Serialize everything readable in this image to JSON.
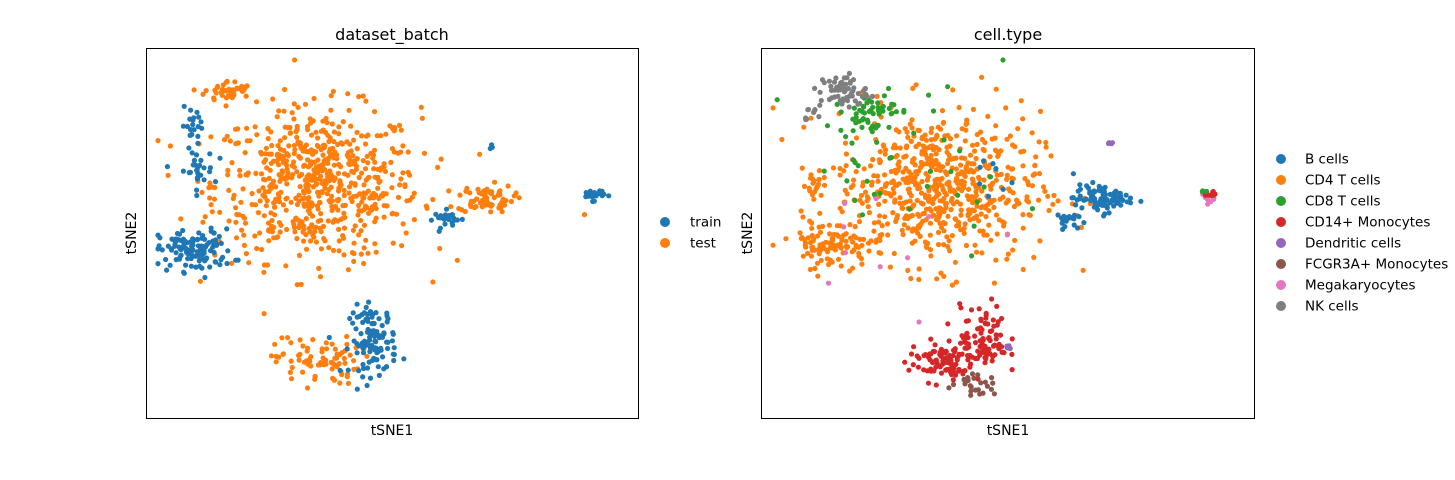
{
  "chart_data": [
    {
      "type": "scatter",
      "title": "dataset_batch",
      "xlabel": "tSNE1",
      "ylabel": "tSNE2",
      "xticks": [],
      "yticks": [],
      "xlim": [
        0,
        100
      ],
      "ylim": [
        0,
        100
      ],
      "grid": false,
      "legend_position": "right",
      "series": [
        {
          "name": "train",
          "color": "#1f77b4"
        },
        {
          "name": "test",
          "color": "#ff7f0e"
        }
      ],
      "clusters": [
        {
          "series": "test",
          "x": 34,
          "y": 64,
          "sx": 11,
          "sy": 11,
          "n": 650
        },
        {
          "series": "test",
          "x": 15,
          "y": 91,
          "sx": 2.5,
          "sy": 1.5,
          "n": 45
        },
        {
          "series": "test",
          "x": 70,
          "y": 60,
          "sx": 3,
          "sy": 2,
          "n": 70
        },
        {
          "series": "test",
          "x": 34,
          "y": 13,
          "sx": 4.5,
          "sy": 3.5,
          "n": 80
        },
        {
          "series": "test",
          "x": 91,
          "y": 55,
          "sx": 0.3,
          "sy": 0.3,
          "n": 1
        },
        {
          "series": "train",
          "x": 8,
          "y": 45,
          "sx": 4,
          "sy": 3,
          "n": 120
        },
        {
          "series": "train",
          "x": 8,
          "y": 68,
          "sx": 2,
          "sy": 3,
          "n": 30
        },
        {
          "series": "train",
          "x": 8,
          "y": 81,
          "sx": 1.5,
          "sy": 2.5,
          "n": 20
        },
        {
          "series": "train",
          "x": 46,
          "y": 19,
          "sx": 2.5,
          "sy": 5,
          "n": 110
        },
        {
          "series": "train",
          "x": 62,
          "y": 54,
          "sx": 1.5,
          "sy": 1.2,
          "n": 25
        },
        {
          "series": "train",
          "x": 93,
          "y": 61,
          "sx": 1.2,
          "sy": 0.8,
          "n": 25
        },
        {
          "series": "train",
          "x": 71,
          "y": 75,
          "sx": 0.4,
          "sy": 0.4,
          "n": 3
        }
      ]
    },
    {
      "type": "scatter",
      "title": "cell.type",
      "xlabel": "tSNE1",
      "ylabel": "tSNE2",
      "xticks": [],
      "yticks": [],
      "xlim": [
        0,
        100
      ],
      "ylim": [
        0,
        100
      ],
      "grid": false,
      "legend_position": "right",
      "series": [
        {
          "name": "B cells",
          "color": "#1f77b4"
        },
        {
          "name": "CD4 T cells",
          "color": "#ff7f0e"
        },
        {
          "name": "CD8 T cells",
          "color": "#2ca02c"
        },
        {
          "name": "CD14+ Monocytes",
          "color": "#d62728"
        },
        {
          "name": "Dendritic cells",
          "color": "#9467bd"
        },
        {
          "name": "FCGR3A+ Monocytes",
          "color": "#8c564b"
        },
        {
          "name": "Megakaryocytes",
          "color": "#e377c2"
        },
        {
          "name": "NK cells",
          "color": "#7f7f7f"
        }
      ],
      "clusters": [
        {
          "series": "CD4 T cells",
          "x": 35,
          "y": 63,
          "sx": 11,
          "sy": 11,
          "n": 650
        },
        {
          "series": "CD4 T cells",
          "x": 12,
          "y": 47,
          "sx": 4,
          "sy": 3.5,
          "n": 90
        },
        {
          "series": "CD4 T cells",
          "x": 9,
          "y": 65,
          "sx": 1.5,
          "sy": 2,
          "n": 15
        },
        {
          "series": "CD8 T cells",
          "x": 20,
          "y": 85,
          "sx": 3,
          "sy": 3,
          "n": 50
        },
        {
          "series": "CD8 T cells",
          "x": 30,
          "y": 70,
          "sx": 12,
          "sy": 12,
          "n": 40
        },
        {
          "series": "NK cells",
          "x": 15,
          "y": 91,
          "sx": 2.5,
          "sy": 2.5,
          "n": 60
        },
        {
          "series": "NK cells",
          "x": 8,
          "y": 84,
          "sx": 1,
          "sy": 1,
          "n": 8
        },
        {
          "series": "B cells",
          "x": 70,
          "y": 60,
          "sx": 3,
          "sy": 2,
          "n": 90
        },
        {
          "series": "B cells",
          "x": 62,
          "y": 54,
          "sx": 1.3,
          "sy": 1,
          "n": 20
        },
        {
          "series": "B cells",
          "x": 45,
          "y": 66,
          "sx": 3,
          "sy": 4,
          "n": 8
        },
        {
          "series": "CD14+ Monocytes",
          "x": 36,
          "y": 13,
          "sx": 3.5,
          "sy": 3,
          "n": 90
        },
        {
          "series": "CD14+ Monocytes",
          "x": 45,
          "y": 19,
          "sx": 2.5,
          "sy": 5,
          "n": 90
        },
        {
          "series": "FCGR3A+ Monocytes",
          "x": 43,
          "y": 6,
          "sx": 2.5,
          "sy": 1.5,
          "n": 25
        },
        {
          "series": "Dendritic cells",
          "x": 72,
          "y": 76,
          "sx": 0.4,
          "sy": 0.3,
          "n": 4
        },
        {
          "series": "Dendritic cells",
          "x": 51,
          "y": 17,
          "sx": 0.6,
          "sy": 0.4,
          "n": 4
        },
        {
          "series": "Megakaryocytes",
          "x": 93,
          "y": 60,
          "sx": 1,
          "sy": 0.8,
          "n": 10
        },
        {
          "series": "CD14+ Monocytes",
          "x": 93,
          "y": 61,
          "sx": 0.8,
          "sy": 0.6,
          "n": 8
        },
        {
          "series": "CD8 T cells",
          "x": 92,
          "y": 62,
          "sx": 0.6,
          "sy": 0.5,
          "n": 3
        },
        {
          "series": "Megakaryocytes",
          "x": 30,
          "y": 55,
          "sx": 12,
          "sy": 10,
          "n": 10
        }
      ]
    }
  ]
}
